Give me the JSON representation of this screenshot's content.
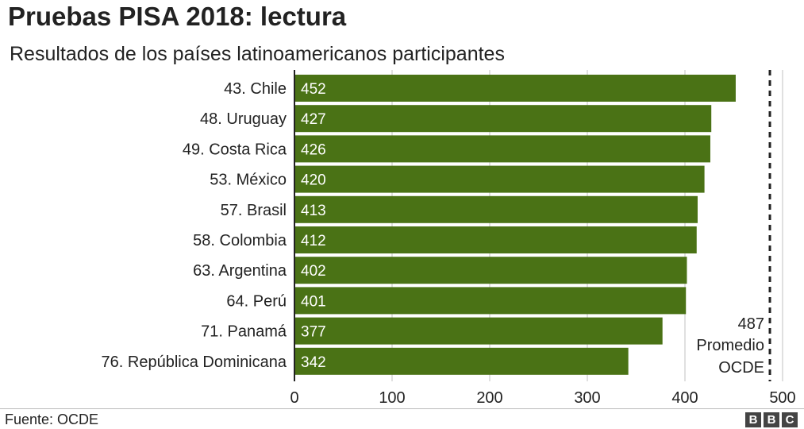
{
  "header": {
    "title": "Pruebas PISA 2018: lectura",
    "subtitle": "Resultados de los países latinoamericanos participantes"
  },
  "footer": {
    "source": "Fuente: OCDE",
    "logo": [
      "B",
      "B",
      "C"
    ]
  },
  "colors": {
    "bar": "#4a7215",
    "bar_text": "#ffffff",
    "grid": "#d6d6d6",
    "reference_line": "#222222"
  },
  "chart_data": {
    "type": "bar",
    "orientation": "horizontal",
    "categories": [
      "43. Chile",
      "48. Uruguay",
      "49. Costa Rica",
      "53. México",
      "57. Brasil",
      "58. Colombia",
      "63. Argentina",
      "64. Perú",
      "71. Panamá",
      "76. República Dominicana"
    ],
    "values": [
      452,
      427,
      426,
      420,
      413,
      412,
      402,
      401,
      377,
      342
    ],
    "value_labels": [
      "452",
      "427",
      "426",
      "420",
      "413",
      "412",
      "402",
      "401",
      "377",
      "342"
    ],
    "xlim": [
      0,
      500
    ],
    "ticks": [
      0,
      100,
      200,
      300,
      400,
      500
    ],
    "tick_labels": [
      "0",
      "100",
      "200",
      "300",
      "400",
      "500"
    ],
    "grid": true,
    "reference": {
      "value": 487,
      "label_lines": [
        "487",
        "Promedio",
        "OCDE"
      ],
      "style": "dashed"
    }
  }
}
